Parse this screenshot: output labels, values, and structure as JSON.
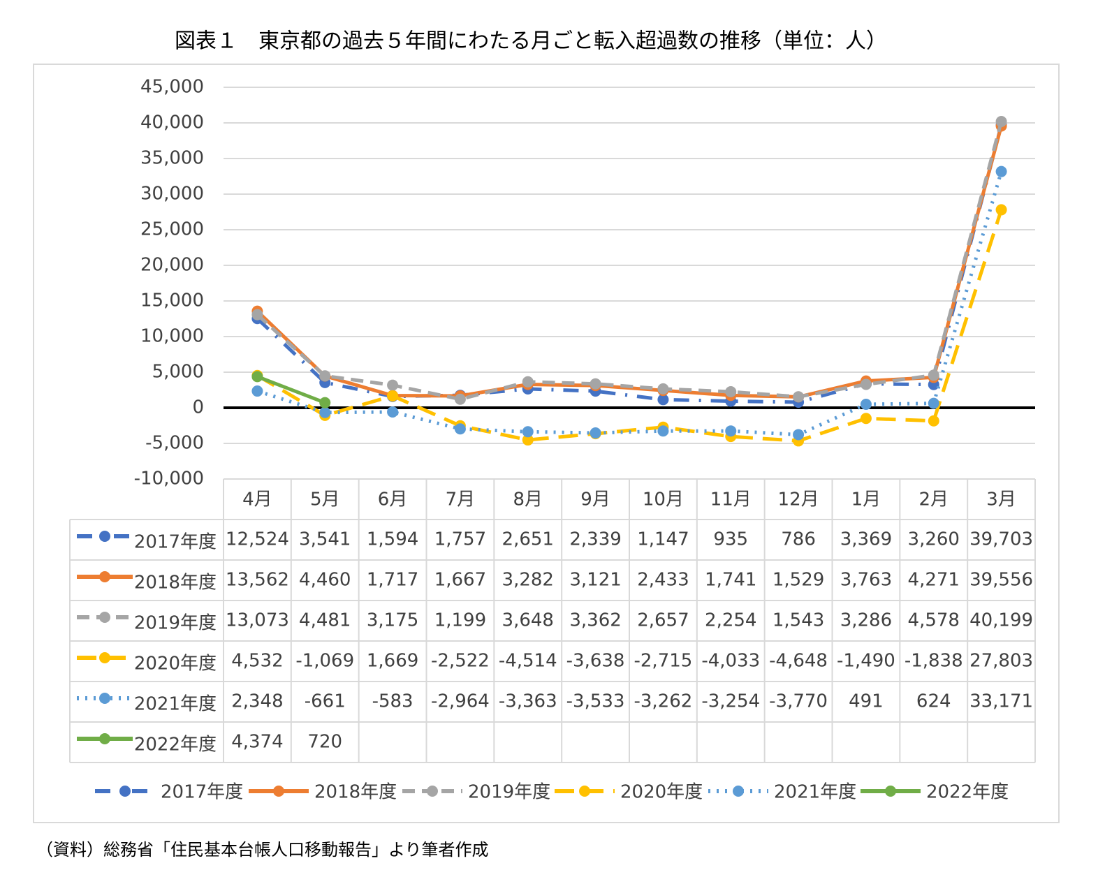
{
  "chart_data": {
    "type": "line",
    "title": "図表１　東京都の過去５年間にわたる月ごと転入超過数の推移（単位：人）",
    "source": "（資料）総務省「住民基本台帳人口移動報告」より筆者作成",
    "categories": [
      "4月",
      "5月",
      "6月",
      "7月",
      "8月",
      "9月",
      "10月",
      "11月",
      "12月",
      "1月",
      "2月",
      "3月"
    ],
    "series": [
      {
        "name": "2017年度",
        "color": "#4472c4",
        "dash": "dash-dot",
        "values": [
          12524,
          3541,
          1594,
          1757,
          2651,
          2339,
          1147,
          935,
          786,
          3369,
          3260,
          39703
        ],
        "value_labels": [
          "12,524",
          "3,541",
          "1,594",
          "1,757",
          "2,651",
          "2,339",
          "1,147",
          "935",
          "786",
          "3,369",
          "3,260",
          "39,703"
        ]
      },
      {
        "name": "2018年度",
        "color": "#ed7d31",
        "dash": "solid",
        "values": [
          13562,
          4460,
          1717,
          1667,
          3282,
          3121,
          2433,
          1741,
          1529,
          3763,
          4271,
          39556
        ],
        "value_labels": [
          "13,562",
          "4,460",
          "1,717",
          "1,667",
          "3,282",
          "3,121",
          "2,433",
          "1,741",
          "1,529",
          "3,763",
          "4,271",
          "39,556"
        ]
      },
      {
        "name": "2019年度",
        "color": "#a5a5a5",
        "dash": "dash",
        "values": [
          13073,
          4481,
          3175,
          1199,
          3648,
          3362,
          2657,
          2254,
          1543,
          3286,
          4578,
          40199
        ],
        "value_labels": [
          "13,073",
          "4,481",
          "3,175",
          "1,199",
          "3,648",
          "3,362",
          "2,657",
          "2,254",
          "1,543",
          "3,286",
          "4,578",
          "40,199"
        ]
      },
      {
        "name": "2020年度",
        "color": "#ffc000",
        "dash": "long-dash",
        "values": [
          4532,
          -1069,
          1669,
          -2522,
          -4514,
          -3638,
          -2715,
          -4033,
          -4648,
          -1490,
          -1838,
          27803
        ],
        "value_labels": [
          "4,532",
          "-1,069",
          "1,669",
          "-2,522",
          "-4,514",
          "-3,638",
          "-2,715",
          "-4,033",
          "-4,648",
          "-1,490",
          "-1,838",
          "27,803"
        ]
      },
      {
        "name": "2021年度",
        "color": "#5b9bd5",
        "dash": "dot",
        "values": [
          2348,
          -661,
          -583,
          -2964,
          -3363,
          -3533,
          -3262,
          -3254,
          -3770,
          491,
          624,
          33171
        ],
        "value_labels": [
          "2,348",
          "-661",
          "-583",
          "-2,964",
          "-3,363",
          "-3,533",
          "-3,262",
          "-3,254",
          "-3,770",
          "491",
          "624",
          "33,171"
        ]
      },
      {
        "name": "2022年度",
        "color": "#70ad47",
        "dash": "solid",
        "values": [
          4374,
          720,
          null,
          null,
          null,
          null,
          null,
          null,
          null,
          null,
          null,
          null
        ],
        "value_labels": [
          "4,374",
          "720",
          null,
          null,
          null,
          null,
          null,
          null,
          null,
          null,
          null,
          null
        ]
      }
    ],
    "ylim": [
      -10000,
      45000
    ],
    "yticks": [
      {
        "value": -10000,
        "label": "-10,000"
      },
      {
        "value": -5000,
        "label": "-5,000"
      },
      0,
      {
        "value": 5000,
        "label": "5,000"
      },
      {
        "value": 10000,
        "label": "10,000"
      },
      {
        "value": 15000,
        "label": "15,000"
      },
      {
        "value": 20000,
        "label": "20,000"
      },
      {
        "value": 25000,
        "label": "25,000"
      },
      {
        "value": 30000,
        "label": "30,000"
      },
      {
        "value": 35000,
        "label": "35,000"
      },
      {
        "value": 40000,
        "label": "40,000"
      },
      {
        "value": 45000,
        "label": "45,000"
      }
    ],
    "grid": true,
    "legend": "bottom"
  }
}
